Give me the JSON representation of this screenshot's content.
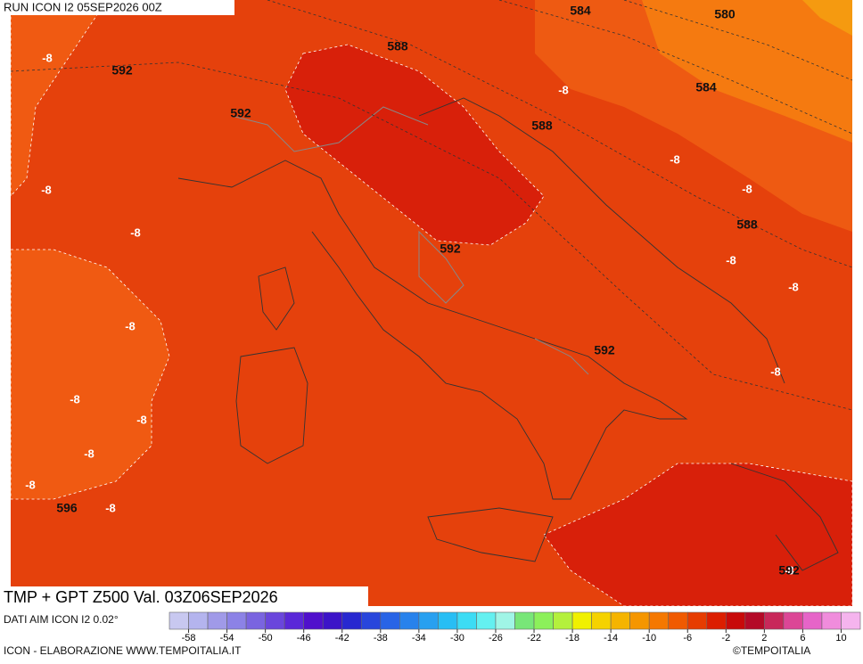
{
  "header": {
    "run": "RUN ICON I2 05SEP2026 00Z"
  },
  "map": {
    "labels": [
      "584",
      "580",
      "588",
      "-8",
      "592",
      "592",
      "-8",
      "584",
      "588",
      "-8",
      "-8",
      "-8",
      "-8",
      "588",
      "592",
      "-8",
      "-8",
      "-8",
      "592",
      "-8",
      "-8",
      "-8",
      "-8",
      "-8",
      "-8",
      "596",
      "-8",
      "592"
    ]
  },
  "footer": {
    "title": "TMP + GPT Z500 Val. 03Z06SEP2026",
    "source": "DATI AIM ICON I2 0.02°",
    "credit": "ICON - ELABORAZIONE WWW.TEMPOITALIA.IT",
    "logo": "©TEMPOITALIA"
  },
  "legend": {
    "range": [
      -60,
      12
    ],
    "ticks": [
      -58,
      -54,
      -50,
      -46,
      -42,
      -38,
      -34,
      -30,
      -26,
      -22,
      -18,
      -14,
      -10,
      -6,
      -2,
      2,
      6,
      10
    ],
    "colors": [
      "#c8c8f0",
      "#b4b4ee",
      "#a09ae8",
      "#8c82e6",
      "#7a64e0",
      "#6a46dc",
      "#5a28d8",
      "#5010cc",
      "#3c14c8",
      "#2828d0",
      "#2846dc",
      "#2864e6",
      "#2882ec",
      "#28a0f0",
      "#28bef4",
      "#3cdcf4",
      "#64f0f0",
      "#a0f5e6",
      "#78e678",
      "#8cf05a",
      "#b4f03c",
      "#f0f000",
      "#f5d200",
      "#f5b400",
      "#f59600",
      "#f57800",
      "#f05a00",
      "#e63c00",
      "#dc1e00",
      "#c80a0a",
      "#b40a28",
      "#c8285a",
      "#dc4696",
      "#e664c8",
      "#f08cdc",
      "#f5b4ee"
    ]
  }
}
